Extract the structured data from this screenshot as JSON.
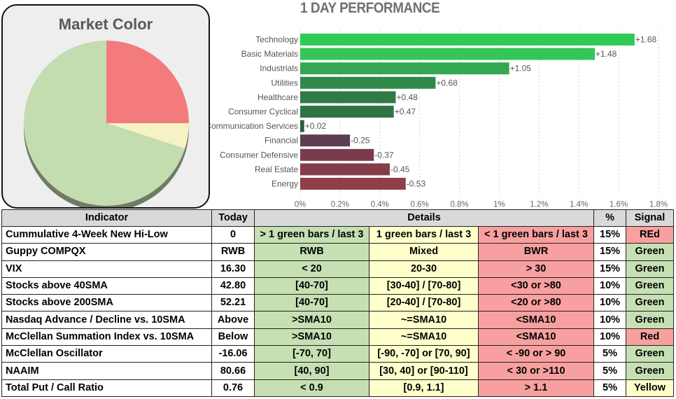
{
  "market_color": {
    "title": "Market Color",
    "slices": [
      {
        "label": "red",
        "value": 25,
        "color": "#f47b7b"
      },
      {
        "label": "yellow",
        "value": 5,
        "color": "#f5f2c4"
      },
      {
        "label": "green",
        "value": 70,
        "color": "#c3dcb0"
      }
    ]
  },
  "chart_data": {
    "type": "bar",
    "orientation": "horizontal",
    "title": "1 DAY PERFORMANCE",
    "categories": [
      "Technology",
      "Basic Materials",
      "Industrials",
      "Utilities",
      "Healthcare",
      "Consumer Cyclical",
      "Communication Services",
      "Financial",
      "Consumer Defensive",
      "Real Estate",
      "Energy"
    ],
    "values": [
      1.68,
      1.48,
      1.05,
      0.68,
      0.48,
      0.47,
      0.02,
      -0.25,
      -0.37,
      -0.45,
      -0.53
    ],
    "value_labels": [
      "+1.68",
      "+1.48",
      "+1.05",
      "+0.68",
      "+0.48",
      "+0.47",
      "+0.02",
      "-0.25",
      "-0.37",
      "-0.45",
      "-0.53"
    ],
    "colors": [
      "#2ecc55",
      "#35c559",
      "#33a850",
      "#2f8a48",
      "#2e7b46",
      "#2e7545",
      "#2e5a40",
      "#5c3d52",
      "#7a3c4c",
      "#853d4a",
      "#8f3f49"
    ],
    "xlim": [
      0,
      1.8
    ],
    "xticks": [
      "0%",
      "0.2%",
      "0.4%",
      "0.6%",
      "0.8%",
      "1%",
      "1.2%",
      "1.4%",
      "1.6%",
      "1.8%"
    ],
    "xtick_values": [
      0,
      0.2,
      0.4,
      0.6,
      0.8,
      1.0,
      1.2,
      1.4,
      1.6,
      1.8
    ],
    "xlabel": "",
    "ylabel": "",
    "grid": true
  },
  "table": {
    "headers": {
      "indicator": "Indicator",
      "today": "Today",
      "details": "Details",
      "pct": "%",
      "signal": "Signal"
    },
    "rows": [
      {
        "name": "Cummulative 4-Week New Hi-Low",
        "today": "0",
        "green": "> 1 green bars / last 3",
        "yellow": "1 green bars / last 3",
        "red": "< 1 green bars / last 3",
        "pct": "15%",
        "signal": "REd",
        "signal_class": "r"
      },
      {
        "name": "Guppy COMPQX",
        "today": "RWB",
        "green": "RWB",
        "yellow": "Mixed",
        "red": "BWR",
        "pct": "15%",
        "signal": "Green",
        "signal_class": "g"
      },
      {
        "name": "VIX",
        "today": "16.30",
        "green": "< 20",
        "yellow": "20-30",
        "red": "> 30",
        "pct": "15%",
        "signal": "Green",
        "signal_class": "g"
      },
      {
        "name": "Stocks above 40SMA",
        "today": "42.80",
        "green": "[40-70]",
        "yellow": "[30-40] / [70-80]",
        "red": "<30 or >80",
        "pct": "10%",
        "signal": "Green",
        "signal_class": "g"
      },
      {
        "name": "Stocks above 200SMA",
        "today": "52.21",
        "green": "[40-70]",
        "yellow": "[20-40] / [70-80]",
        "red": "<20 or >80",
        "pct": "10%",
        "signal": "Green",
        "signal_class": "g"
      },
      {
        "name": "Nasdaq Advance / Decline vs. 10SMA",
        "today": "Above",
        "green": ">SMA10",
        "yellow": "~=SMA10",
        "red": "<SMA10",
        "pct": "10%",
        "signal": "Green",
        "signal_class": "g"
      },
      {
        "name": "McClellan Summation Index vs. 10SMA",
        "today": "Below",
        "green": ">SMA10",
        "yellow": "~=SMA10",
        "red": "<SMA10",
        "pct": "10%",
        "signal": "Red",
        "signal_class": "r"
      },
      {
        "name": "McClellan Oscillator",
        "today": "-16.06",
        "green": "[-70,  70]",
        "yellow": "[-90, -70] or [70, 90]",
        "red": "< -90 or > 90",
        "pct": "5%",
        "signal": "Green",
        "signal_class": "g"
      },
      {
        "name": "NAAIM",
        "today": "80.66",
        "green": "[40, 90]",
        "yellow": "[30, 40] or [90-110]",
        "red": "< 30 or >110",
        "pct": "5%",
        "signal": "Green",
        "signal_class": "g"
      },
      {
        "name": "Total Put / Call Ratio",
        "today": "0.76",
        "green": "< 0.9",
        "yellow": "[0.9, 1.1]",
        "red": "> 1.1",
        "pct": "5%",
        "signal": "Yellow",
        "signal_class": "y"
      }
    ]
  }
}
